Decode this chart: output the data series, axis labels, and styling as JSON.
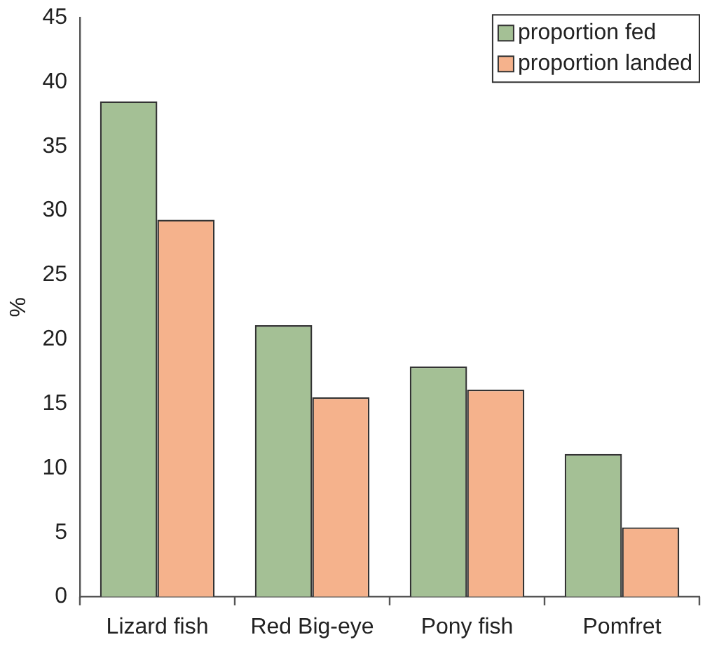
{
  "chart_data": {
    "type": "bar",
    "ylabel": "%",
    "categories": [
      "Lizard fish",
      "Red Big-eye",
      "Pony fish",
      "Pomfret"
    ],
    "series": [
      {
        "name": "proportion fed",
        "color": "#a4c095",
        "values": [
          38.5,
          21.1,
          17.9,
          11.1
        ]
      },
      {
        "name": "proportion landed",
        "color": "#f5b28c",
        "values": [
          29.3,
          15.5,
          16.1,
          5.4
        ]
      }
    ],
    "ylim": [
      0,
      45
    ],
    "yticks": [
      0,
      5,
      10,
      15,
      20,
      25,
      30,
      35,
      40,
      45
    ],
    "grid": false,
    "legend": "top right"
  }
}
